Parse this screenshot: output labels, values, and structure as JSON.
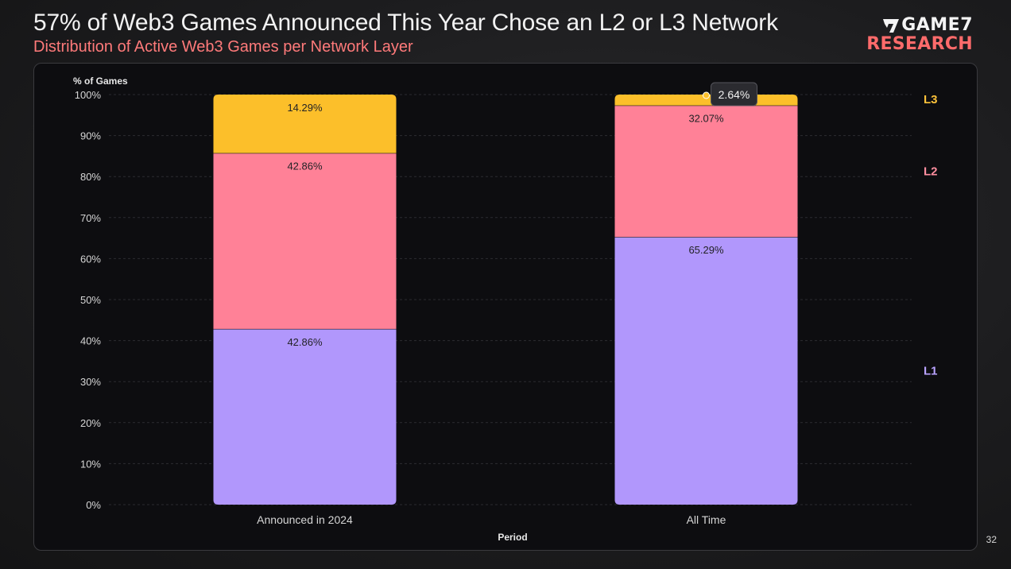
{
  "header": {
    "title": "57% of Web3 Games Announced This Year Chose an L2 or L3 Network",
    "subtitle": "Distribution of Active Web3 Games per Network Layer"
  },
  "logo": {
    "line1": "GAME7",
    "line2": "RESEARCH"
  },
  "page_number": "32",
  "colors": {
    "L1": "#b197fc",
    "L2": "#ff8197",
    "L3": "#fcbf2a",
    "L1_label": "#b9a3ff",
    "L2_label": "#ff8fa0",
    "L3_label": "#fcc23a"
  },
  "chart_data": {
    "type": "bar",
    "stacked": true,
    "ylabel": "% of Games",
    "xlabel": "Period",
    "ylim": [
      0,
      100
    ],
    "yticks": [
      0,
      10,
      20,
      30,
      40,
      50,
      60,
      70,
      80,
      90,
      100
    ],
    "ytick_labels": [
      "0%",
      "10%",
      "20%",
      "30%",
      "40%",
      "50%",
      "60%",
      "70%",
      "80%",
      "90%",
      "100%"
    ],
    "categories": [
      "Announced in 2024",
      "All Time"
    ],
    "series": [
      {
        "name": "L1",
        "values": [
          42.86,
          65.29
        ],
        "labels": [
          "42.86%",
          "65.29%"
        ]
      },
      {
        "name": "L2",
        "values": [
          42.86,
          32.07
        ],
        "labels": [
          "42.86%",
          "32.07%"
        ]
      },
      {
        "name": "L3",
        "values": [
          14.29,
          2.64
        ],
        "labels": [
          "14.29%",
          "2.64%"
        ]
      }
    ],
    "tooltip": {
      "category": "All Time",
      "series": "L3",
      "text": "2.64%"
    },
    "legend": [
      "L3",
      "L2",
      "L1"
    ],
    "legend_position": "right"
  }
}
